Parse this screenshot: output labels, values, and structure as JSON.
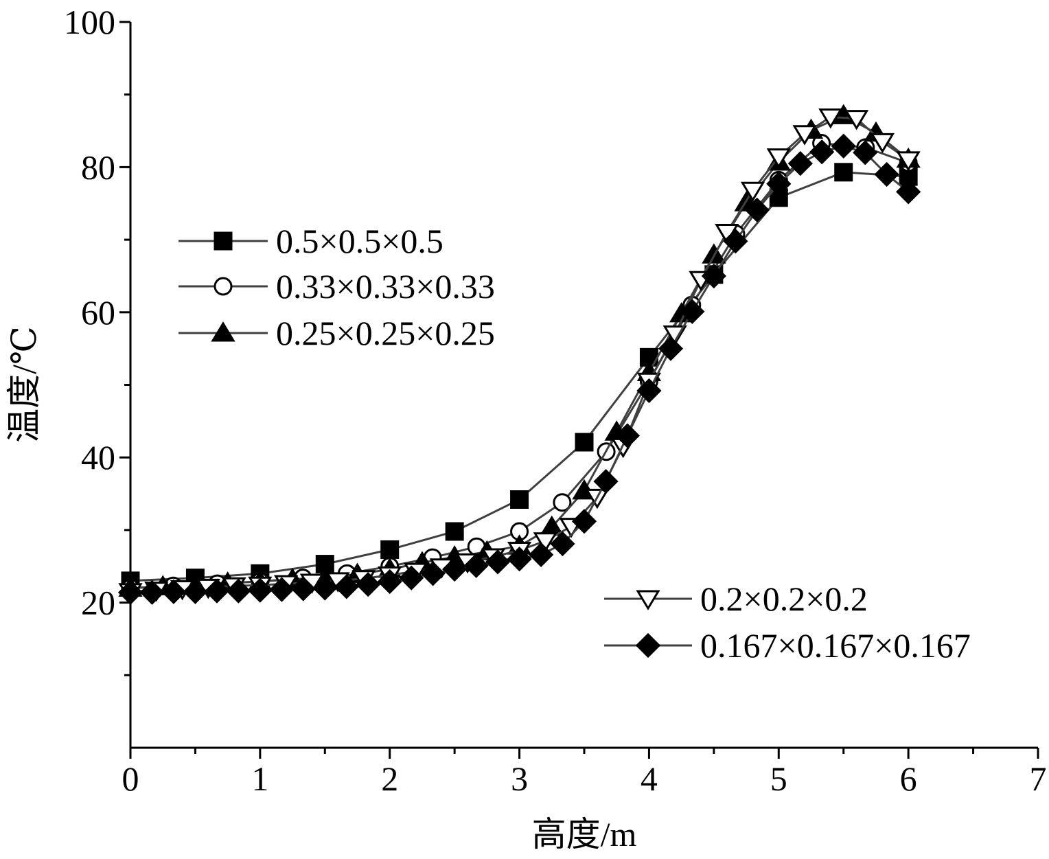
{
  "chart_data": {
    "type": "line",
    "xlabel": "高度/m",
    "ylabel": "温度/℃",
    "xlim": [
      0,
      7
    ],
    "ylim": [
      0,
      100
    ],
    "x_ticks": [
      "0",
      "1",
      "2",
      "3",
      "4",
      "5",
      "6",
      "7"
    ],
    "y_ticks": [
      "20",
      "40",
      "60",
      "80",
      "100"
    ],
    "grid": false,
    "legend_placement": "left and lower-right",
    "colors": {
      "line": "#404040",
      "marker": "#000000",
      "axis": "#000000"
    },
    "series": [
      {
        "name": "0.5×0.5×0.5",
        "marker": "square-filled",
        "x": [
          0,
          0.5,
          1,
          1.5,
          2,
          2.5,
          3,
          3.5,
          4,
          4.5,
          5,
          5.5,
          6
        ],
        "y": [
          23.0,
          23.4,
          24.0,
          25.3,
          27.3,
          29.8,
          34.2,
          42.1,
          53.8,
          65.2,
          75.8,
          79.3,
          78.7
        ]
      },
      {
        "name": "0.33×0.33×0.33",
        "marker": "circle-open",
        "x": [
          0,
          0.33,
          0.67,
          1,
          1.33,
          1.67,
          2,
          2.33,
          2.67,
          3,
          3.33,
          3.67,
          4,
          4.33,
          4.67,
          5,
          5.33,
          5.67,
          6
        ],
        "y": [
          22.0,
          22.3,
          22.6,
          22.9,
          23.4,
          24.0,
          25.0,
          26.2,
          27.7,
          29.8,
          33.8,
          40.8,
          50.5,
          61.0,
          70.8,
          78.2,
          83.3,
          82.7,
          80.6
        ]
      },
      {
        "name": "0.25×0.25×0.25",
        "marker": "triangle-up-filled",
        "x": [
          0,
          0.25,
          0.5,
          0.75,
          1,
          1.25,
          1.5,
          1.75,
          2,
          2.25,
          2.5,
          2.75,
          3,
          3.25,
          3.5,
          3.75,
          4,
          4.25,
          4.5,
          4.75,
          5,
          5.25,
          5.5,
          5.75,
          6
        ],
        "y": [
          22.0,
          22.2,
          22.4,
          22.7,
          22.9,
          23.2,
          23.5,
          23.9,
          24.6,
          25.5,
          26.3,
          27.0,
          27.8,
          30.4,
          35.4,
          43.5,
          51.7,
          59.8,
          67.9,
          75.1,
          80.7,
          85.1,
          87.1,
          84.7,
          81.1
        ]
      },
      {
        "name": "0.2×0.2×0.2",
        "marker": "triangle-down-open",
        "x": [
          0,
          0.2,
          0.4,
          0.6,
          0.8,
          1,
          1.2,
          1.4,
          1.6,
          1.8,
          2,
          2.2,
          2.4,
          2.6,
          2.8,
          3,
          3.2,
          3.4,
          3.6,
          3.8,
          4,
          4.2,
          4.4,
          4.6,
          4.8,
          5,
          5.2,
          5.4,
          5.6,
          5.8,
          6
        ],
        "y": [
          21.5,
          21.7,
          21.9,
          22.1,
          22.3,
          22.4,
          22.6,
          22.8,
          23.0,
          23.3,
          23.8,
          24.3,
          24.9,
          25.6,
          26.3,
          27.2,
          28.5,
          30.5,
          34.5,
          41.5,
          50.5,
          57.0,
          64.5,
          71.0,
          76.8,
          81.4,
          84.6,
          86.9,
          86.7,
          83.5,
          81.0
        ]
      },
      {
        "name": "0.167×0.167×0.167",
        "marker": "diamond-filled",
        "x": [
          0,
          0.167,
          0.333,
          0.5,
          0.667,
          0.833,
          1,
          1.167,
          1.333,
          1.5,
          1.667,
          1.833,
          2,
          2.167,
          2.333,
          2.5,
          2.667,
          2.833,
          3,
          3.167,
          3.333,
          3.5,
          3.667,
          3.833,
          4,
          4.167,
          4.333,
          4.5,
          4.667,
          4.833,
          5,
          5.167,
          5.333,
          5.5,
          5.667,
          5.833,
          6
        ],
        "y": [
          21.4,
          21.4,
          21.5,
          21.5,
          21.6,
          21.6,
          21.7,
          21.8,
          21.9,
          22.0,
          22.2,
          22.5,
          22.9,
          23.4,
          24.0,
          24.6,
          25.1,
          25.6,
          26.0,
          26.6,
          28.1,
          31.2,
          36.7,
          43.0,
          49.2,
          55.0,
          60.1,
          65.0,
          69.8,
          74.1,
          77.7,
          80.5,
          82.1,
          82.9,
          82.0,
          79.0,
          76.6
        ]
      }
    ]
  }
}
